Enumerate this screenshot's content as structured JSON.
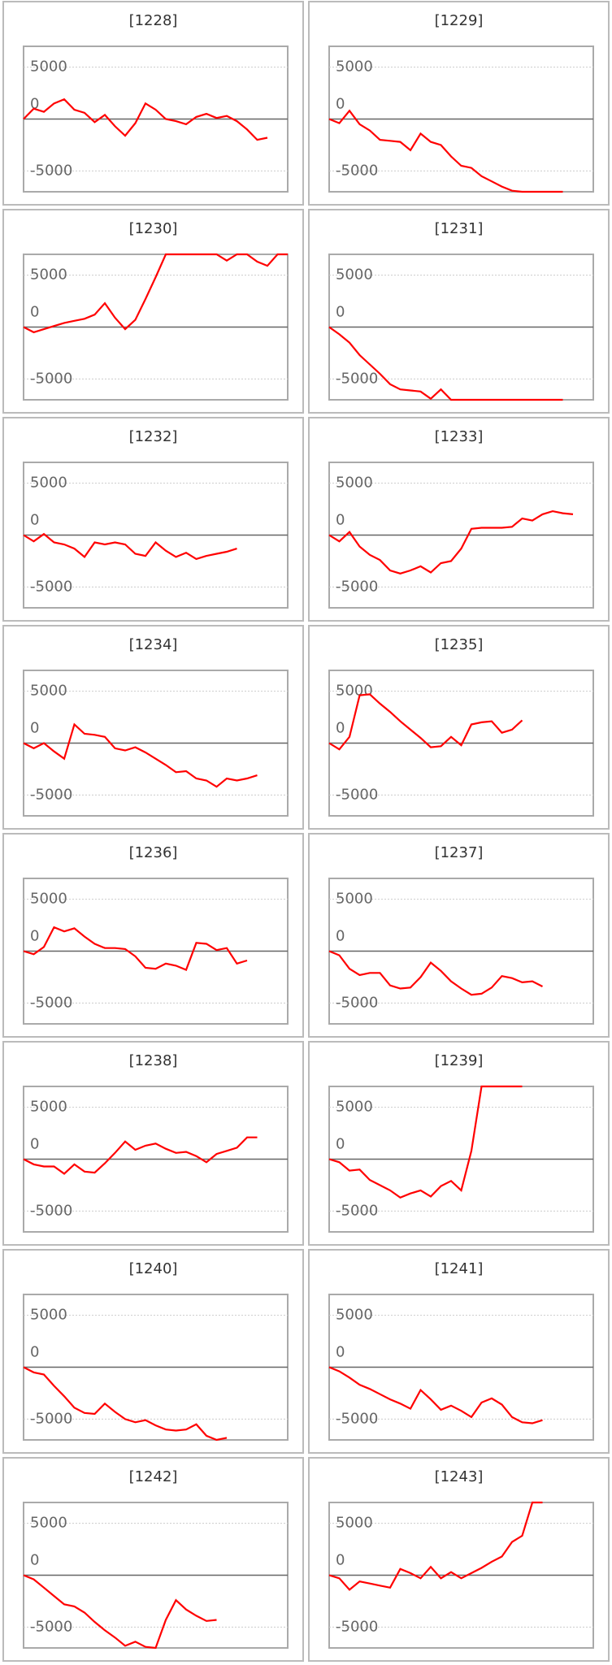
{
  "chart_data": [
    {
      "type": "line",
      "title": "[1228]",
      "color": "#ff0000",
      "ylim": [
        -7000,
        7000
      ],
      "yticks": [
        5000,
        0,
        -5000
      ],
      "values": [
        0,
        1000,
        700,
        1500,
        1900,
        900,
        600,
        -300,
        400,
        -700,
        -1600,
        -400,
        1500,
        900,
        0,
        -200,
        -500,
        200,
        500,
        100,
        300,
        -200,
        -1000,
        -2000,
        -1800
      ]
    },
    {
      "type": "line",
      "title": "[1229]",
      "color": "#ff0000",
      "ylim": [
        -7000,
        7000
      ],
      "yticks": [
        5000,
        0,
        -5000
      ],
      "values": [
        0,
        -400,
        800,
        -500,
        -1100,
        -2000,
        -2100,
        -2200,
        -3000,
        -1400,
        -2200,
        -2500,
        -3600,
        -4500,
        -4700,
        -5500,
        -6000,
        -6500,
        -6900,
        -7000,
        -7000,
        -7000,
        -7000,
        -7000
      ]
    },
    {
      "type": "line",
      "title": "[1230]",
      "color": "#ff0000",
      "ylim": [
        -7000,
        7000
      ],
      "yticks": [
        5000,
        0,
        -5000
      ],
      "values": [
        0,
        -500,
        -200,
        100,
        400,
        600,
        800,
        1200,
        2300,
        900,
        -200,
        700,
        2700,
        4800,
        7000,
        7000,
        7000,
        7000,
        7000,
        7000,
        6400,
        7000,
        7000,
        6300,
        5900,
        7000,
        7000
      ]
    },
    {
      "type": "line",
      "title": "[1231]",
      "color": "#ff0000",
      "ylim": [
        -7000,
        7000
      ],
      "yticks": [
        5000,
        0,
        -5000
      ],
      "values": [
        0,
        -700,
        -1500,
        -2700,
        -3600,
        -4500,
        -5500,
        -6000,
        -6100,
        -6200,
        -6900,
        -6000,
        -7000,
        -7000,
        -7000,
        -7000,
        -7000,
        -7000,
        -7000,
        -7000,
        -7000,
        -7000,
        -7000,
        -7000
      ]
    },
    {
      "type": "line",
      "title": "[1232]",
      "color": "#ff0000",
      "ylim": [
        -7000,
        7000
      ],
      "yticks": [
        5000,
        0,
        -5000
      ],
      "values": [
        0,
        -600,
        100,
        -700,
        -900,
        -1300,
        -2100,
        -700,
        -900,
        -700,
        -900,
        -1800,
        -2000,
        -700,
        -1500,
        -2100,
        -1700,
        -2300,
        -2000,
        -1800,
        -1600,
        -1300
      ]
    },
    {
      "type": "line",
      "title": "[1233]",
      "color": "#ff0000",
      "ylim": [
        -7000,
        7000
      ],
      "yticks": [
        5000,
        0,
        -5000
      ],
      "values": [
        0,
        -600,
        300,
        -1100,
        -1900,
        -2400,
        -3400,
        -3700,
        -3400,
        -3000,
        -3600,
        -2700,
        -2500,
        -1300,
        600,
        700,
        700,
        700,
        800,
        1600,
        1400,
        2000,
        2300,
        2100,
        2000
      ]
    },
    {
      "type": "line",
      "title": "[1234]",
      "color": "#ff0000",
      "ylim": [
        -7000,
        7000
      ],
      "yticks": [
        5000,
        0,
        -5000
      ],
      "values": [
        0,
        -500,
        0,
        -800,
        -1500,
        1800,
        900,
        800,
        600,
        -500,
        -700,
        -400,
        -900,
        -1500,
        -2100,
        -2800,
        -2700,
        -3400,
        -3600,
        -4200,
        -3400,
        -3600,
        -3400,
        -3100
      ]
    },
    {
      "type": "line",
      "title": "[1235]",
      "color": "#ff0000",
      "ylim": [
        -7000,
        7000
      ],
      "yticks": [
        5000,
        0,
        -5000
      ],
      "values": [
        0,
        -600,
        600,
        4600,
        4700,
        3800,
        3000,
        2100,
        1300,
        500,
        -400,
        -300,
        600,
        -200,
        1800,
        2000,
        2100,
        1000,
        1300,
        2200
      ]
    },
    {
      "type": "line",
      "title": "[1236]",
      "color": "#ff0000",
      "ylim": [
        -7000,
        7000
      ],
      "yticks": [
        5000,
        0,
        -5000
      ],
      "values": [
        0,
        -300,
        400,
        2300,
        1900,
        2200,
        1400,
        700,
        300,
        300,
        200,
        -500,
        -1600,
        -1700,
        -1200,
        -1400,
        -1800,
        800,
        700,
        100,
        300,
        -1200,
        -900
      ]
    },
    {
      "type": "line",
      "title": "[1237]",
      "color": "#ff0000",
      "ylim": [
        -7000,
        7000
      ],
      "yticks": [
        5000,
        0,
        -5000
      ],
      "values": [
        0,
        -400,
        -1700,
        -2300,
        -2100,
        -2100,
        -3300,
        -3600,
        -3500,
        -2500,
        -1100,
        -1900,
        -2900,
        -3600,
        -4200,
        -4100,
        -3500,
        -2400,
        -2600,
        -3000,
        -2900,
        -3400
      ]
    },
    {
      "type": "line",
      "title": "[1238]",
      "color": "#ff0000",
      "ylim": [
        -7000,
        7000
      ],
      "yticks": [
        5000,
        0,
        -5000
      ],
      "values": [
        0,
        -500,
        -700,
        -700,
        -1400,
        -500,
        -1200,
        -1300,
        -400,
        600,
        1700,
        900,
        1300,
        1500,
        1000,
        600,
        700,
        300,
        -300,
        500,
        800,
        1100,
        2100,
        2100
      ]
    },
    {
      "type": "line",
      "title": "[1239]",
      "color": "#ff0000",
      "ylim": [
        -7000,
        7000
      ],
      "yticks": [
        5000,
        0,
        -5000
      ],
      "values": [
        0,
        -300,
        -1100,
        -1000,
        -2000,
        -2500,
        -3000,
        -3700,
        -3300,
        -3000,
        -3600,
        -2600,
        -2100,
        -3000,
        800,
        7000,
        7000,
        7000,
        7000,
        7000
      ]
    },
    {
      "type": "line",
      "title": "[1240]",
      "color": "#ff0000",
      "ylim": [
        -7000,
        7000
      ],
      "yticks": [
        5000,
        0,
        -5000
      ],
      "values": [
        0,
        -500,
        -700,
        -1800,
        -2800,
        -3900,
        -4400,
        -4500,
        -3500,
        -4300,
        -5000,
        -5300,
        -5100,
        -5600,
        -6000,
        -6100,
        -6000,
        -5500,
        -6600,
        -7000,
        -6800
      ]
    },
    {
      "type": "line",
      "title": "[1241]",
      "color": "#ff0000",
      "ylim": [
        -7000,
        7000
      ],
      "yticks": [
        5000,
        0,
        -5000
      ],
      "values": [
        0,
        -400,
        -1000,
        -1700,
        -2100,
        -2600,
        -3100,
        -3500,
        -4000,
        -2200,
        -3100,
        -4100,
        -3700,
        -4200,
        -4800,
        -3400,
        -3000,
        -3600,
        -4800,
        -5300,
        -5400,
        -5100
      ]
    },
    {
      "type": "line",
      "title": "[1242]",
      "color": "#ff0000",
      "ylim": [
        -7000,
        7000
      ],
      "yticks": [
        5000,
        0,
        -5000
      ],
      "values": [
        0,
        -400,
        -1200,
        -2000,
        -2800,
        -3000,
        -3600,
        -4500,
        -5300,
        -6000,
        -6800,
        -6400,
        -6900,
        -7000,
        -4300,
        -2400,
        -3300,
        -3900,
        -4400,
        -4300
      ]
    },
    {
      "type": "line",
      "title": "[1243]",
      "color": "#ff0000",
      "ylim": [
        -7000,
        7000
      ],
      "yticks": [
        5000,
        0,
        -5000
      ],
      "values": [
        0,
        -300,
        -1400,
        -600,
        -800,
        -1000,
        -1200,
        600,
        200,
        -300,
        800,
        -300,
        300,
        -300,
        200,
        700,
        1300,
        1800,
        3200,
        3800,
        7000,
        7000
      ]
    }
  ]
}
